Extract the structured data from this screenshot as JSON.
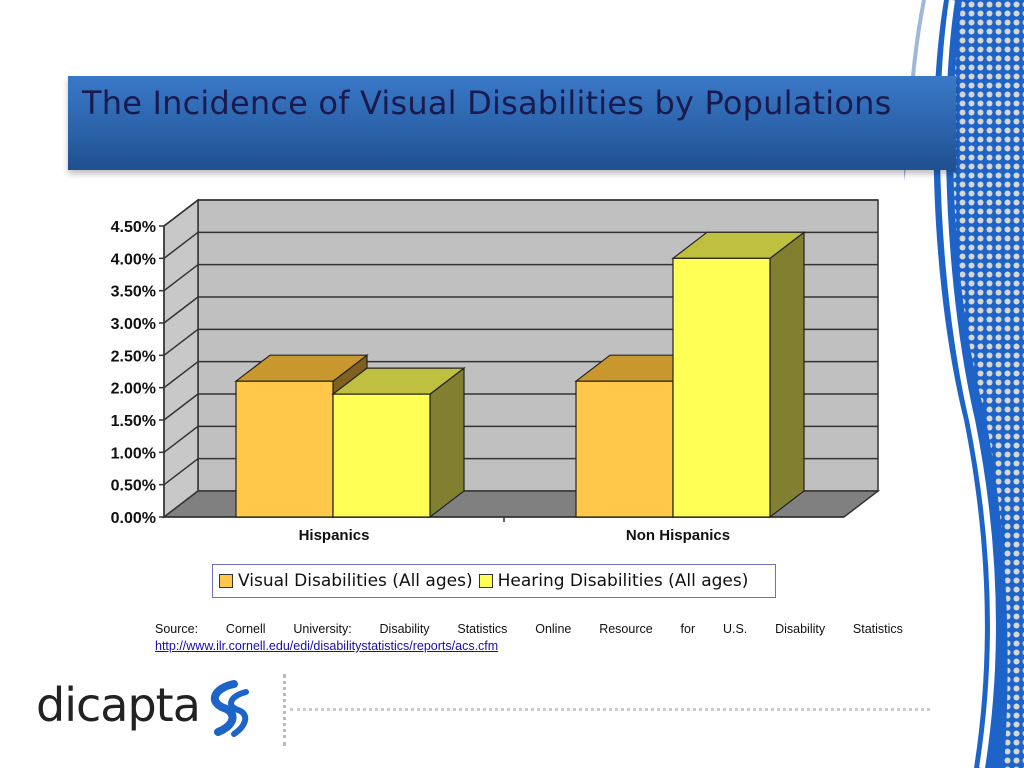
{
  "slide": {
    "title": "The Incidence of Visual Disabilities by Populations",
    "source_text": "Source: Cornell University: Disability Statistics Online Resource for U.S. Disability Statistics",
    "source_link": "http://www.ilr.cornell.edu/edi/disabilitystatistics/reports/acs.cfm",
    "logo_text": "dicapta",
    "colors": {
      "title_bar": "#2a62a8",
      "title_text": "#1a1a4e",
      "accent_blue": "#1e64c8"
    }
  },
  "chart_data": {
    "type": "bar",
    "title": "",
    "xlabel": "",
    "ylabel": "",
    "ylim": [
      0,
      4.5
    ],
    "grid": true,
    "legend_position": "bottom",
    "y_ticks": [
      "0.00%",
      "0.50%",
      "1.00%",
      "1.50%",
      "2.00%",
      "2.50%",
      "3.00%",
      "3.50%",
      "4.00%",
      "4.50%"
    ],
    "categories": [
      "Hispanics",
      "Non Hispanics"
    ],
    "series": [
      {
        "name": "Visual Disabilities (All ages)",
        "values": [
          2.1,
          2.1
        ],
        "color": "#ffc84a"
      },
      {
        "name": "Hearing Disabilities (All ages)",
        "values": [
          1.9,
          4.0
        ],
        "color": "#ffff55"
      }
    ]
  }
}
